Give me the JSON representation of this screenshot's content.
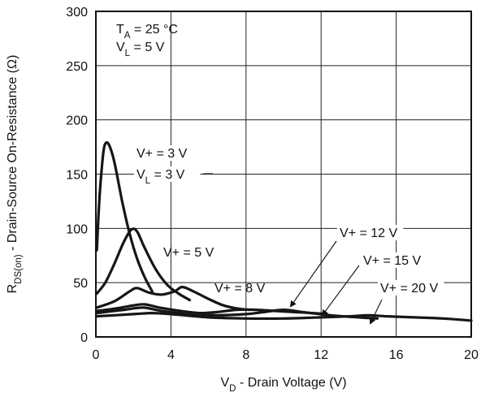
{
  "chart_data": {
    "type": "line",
    "xlabel": "V_D - Drain Voltage (V)",
    "ylabel": "R_DS(on) - Drain-Source On-Resistance (Ω)",
    "xlim": [
      0,
      20
    ],
    "ylim": [
      0,
      300
    ],
    "xticks": [
      0,
      4,
      8,
      12,
      16,
      20
    ],
    "yticks": [
      0,
      50,
      100,
      150,
      200,
      250,
      300
    ],
    "grid": true,
    "conditions": [
      "T_A = 25 °C",
      "V_L = 5 V"
    ],
    "series": [
      {
        "name": "V+ = 3 V, V_L = 3 V",
        "label_lines": [
          "V+ = 3 V",
          "V_L = 3 V"
        ],
        "points": [
          [
            0.05,
            80
          ],
          [
            0.2,
            130
          ],
          [
            0.4,
            170
          ],
          [
            0.55,
            179
          ],
          [
            0.75,
            175
          ],
          [
            1.0,
            160
          ],
          [
            1.4,
            125
          ],
          [
            1.8,
            95
          ],
          [
            2.2,
            72
          ],
          [
            2.6,
            55
          ],
          [
            3.0,
            42
          ]
        ]
      },
      {
        "name": "V+ = 5 V",
        "label_lines": [
          "V+ = 5 V"
        ],
        "points": [
          [
            0.05,
            40
          ],
          [
            0.5,
            50
          ],
          [
            1.0,
            68
          ],
          [
            1.5,
            88
          ],
          [
            1.9,
            99
          ],
          [
            2.2,
            97
          ],
          [
            2.6,
            82
          ],
          [
            3.2,
            62
          ],
          [
            3.8,
            48
          ],
          [
            4.4,
            40
          ],
          [
            5.0,
            34
          ]
        ]
      },
      {
        "name": "V+ = 8 V",
        "label_lines": [
          "V+ = 8 V"
        ],
        "points": [
          [
            0.05,
            27
          ],
          [
            1.0,
            33
          ],
          [
            1.8,
            42
          ],
          [
            2.2,
            45
          ],
          [
            2.8,
            41
          ],
          [
            3.5,
            39
          ],
          [
            4.2,
            42
          ],
          [
            4.6,
            46
          ],
          [
            5.2,
            42
          ],
          [
            6.0,
            35
          ],
          [
            6.8,
            29
          ],
          [
            7.6,
            26
          ],
          [
            8.2,
            25
          ]
        ]
      },
      {
        "name": "V+ = 12 V",
        "label_lines": [
          "V+ = 12 V"
        ],
        "points": [
          [
            0.05,
            24
          ],
          [
            1.0,
            26
          ],
          [
            2.0,
            29
          ],
          [
            2.6,
            30
          ],
          [
            3.4,
            27
          ],
          [
            4.5,
            24
          ],
          [
            5.5,
            22
          ],
          [
            6.5,
            23
          ],
          [
            7.5,
            25
          ],
          [
            8.5,
            25
          ],
          [
            9.5,
            24
          ],
          [
            10.5,
            23
          ],
          [
            11.5,
            22
          ],
          [
            12.3,
            21
          ]
        ]
      },
      {
        "name": "V+ = 15 V",
        "label_lines": [
          "V+ = 15 V"
        ],
        "points": [
          [
            0.05,
            22
          ],
          [
            1.5,
            25
          ],
          [
            2.5,
            27
          ],
          [
            3.5,
            24
          ],
          [
            5.0,
            21
          ],
          [
            6.5,
            20
          ],
          [
            8.0,
            21
          ],
          [
            9.0,
            23
          ],
          [
            10.0,
            25
          ],
          [
            11.0,
            23
          ],
          [
            12.5,
            20
          ],
          [
            14.0,
            18
          ],
          [
            15.0,
            17
          ]
        ]
      },
      {
        "name": "V+ = 20 V",
        "label_lines": [
          "V+ = 20 V"
        ],
        "points": [
          [
            0.05,
            19
          ],
          [
            2.0,
            21
          ],
          [
            3.0,
            22
          ],
          [
            4.0,
            21
          ],
          [
            6.0,
            18
          ],
          [
            8.0,
            17
          ],
          [
            10.0,
            17
          ],
          [
            12.0,
            18
          ],
          [
            13.5,
            19
          ],
          [
            14.5,
            20
          ],
          [
            15.5,
            19
          ],
          [
            17.0,
            18
          ],
          [
            18.5,
            17
          ],
          [
            20.0,
            15
          ]
        ]
      }
    ]
  }
}
